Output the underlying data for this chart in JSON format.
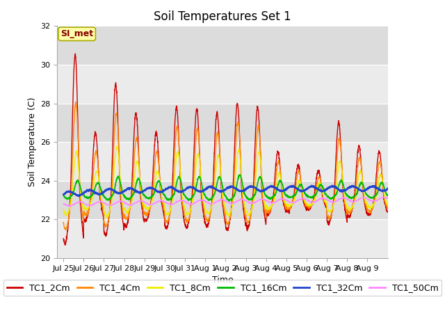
{
  "title": "Soil Temperatures Set 1",
  "xlabel": "Time",
  "ylabel": "Soil Temperature (C)",
  "ylim": [
    20,
    32
  ],
  "yticks": [
    20,
    22,
    24,
    26,
    28,
    30,
    32
  ],
  "xtick_labels": [
    "Jul 25",
    "Jul 26",
    "Jul 27",
    "Jul 28",
    "Jul 29",
    "Jul 30",
    "Jul 31",
    "Aug 1",
    "Aug 2",
    "Aug 3",
    "Aug 4",
    "Aug 5",
    "Aug 6",
    "Aug 7",
    "Aug 8",
    "Aug 9"
  ],
  "n_days": 16,
  "base_temp": 23.0,
  "line_colors": [
    "#cc0000",
    "#ff8800",
    "#eeee00",
    "#00bb00",
    "#2244cc",
    "#ff88ff"
  ],
  "line_labels": [
    "TC1_2Cm",
    "TC1_4Cm",
    "TC1_8Cm",
    "TC1_16Cm",
    "TC1_32Cm",
    "TC1_50Cm"
  ],
  "si_met_label": "SI_met",
  "si_met_box_color": "#ffffaa",
  "si_met_text_color": "#880000",
  "si_met_edge_color": "#aaaa00",
  "title_fontsize": 12,
  "axis_label_fontsize": 9,
  "tick_fontsize": 8,
  "legend_fontsize": 9,
  "fig_bg_color": "#ffffff",
  "band_colors": [
    "#ebebeb",
    "#dcdcdc"
  ],
  "grid_color": "#cccccc",
  "linewidths": [
    1.0,
    1.0,
    1.0,
    1.2,
    1.5,
    1.0
  ]
}
